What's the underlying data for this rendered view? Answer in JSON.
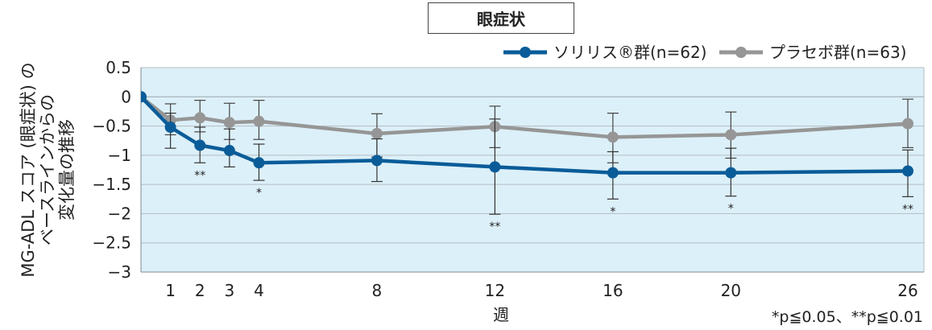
{
  "chart_data": {
    "type": "line",
    "title": "眼症状",
    "xlabel": "週",
    "ylabel_line1": "MG-ADL スコア (眼症状) の",
    "ylabel_line2": "ベースラインからの",
    "ylabel_line3": "変化量の推移",
    "ylim": [
      -3,
      0.5
    ],
    "y_ticks": [
      "0.5",
      "0",
      "−0.5",
      "−1",
      "−1.5",
      "−2",
      "−2.5",
      "−3"
    ],
    "y_tick_values": [
      0.5,
      0,
      -0.5,
      -1,
      -1.5,
      -2,
      -2.5,
      -3
    ],
    "x_ticks": [
      "1",
      "2",
      "3",
      "4",
      "8",
      "12",
      "16",
      "20",
      "26"
    ],
    "x_tick_values": [
      1,
      2,
      3,
      4,
      8,
      12,
      16,
      20,
      26
    ],
    "grid": true,
    "legend_position": "top-right",
    "footnote": "*p≦0.05、**p≦0.01",
    "series": [
      {
        "name": "ソリリス®群(n=62)",
        "color": "#0a5c99",
        "x": [
          0,
          1,
          2,
          3,
          4,
          8,
          12,
          16,
          20,
          26
        ],
        "y": [
          0,
          -0.52,
          -0.83,
          -0.92,
          -1.13,
          -1.09,
          -1.2,
          -1.3,
          -1.3,
          -1.27
        ],
        "err_low": [
          null,
          -0.88,
          -1.13,
          -1.2,
          -1.43,
          -1.45,
          -2.01,
          -1.75,
          -1.7,
          -1.71
        ],
        "err_high": [
          null,
          -0.28,
          -0.52,
          -0.55,
          -0.81,
          -0.72,
          -0.38,
          -0.94,
          -0.88,
          -0.91
        ],
        "significance": [
          "",
          "",
          "**",
          "",
          "*",
          "",
          "**",
          "*",
          "*",
          "**"
        ]
      },
      {
        "name": "プラセボ群(n=63)",
        "color": "#969696",
        "x": [
          0,
          1,
          2,
          3,
          4,
          8,
          12,
          16,
          20,
          26
        ],
        "y": [
          0,
          -0.4,
          -0.36,
          -0.44,
          -0.42,
          -0.63,
          -0.51,
          -0.69,
          -0.65,
          -0.46
        ],
        "err_low": [
          null,
          -0.65,
          -0.6,
          -0.73,
          -0.73,
          -1.03,
          -0.87,
          -1.13,
          -1.05,
          -0.87
        ],
        "err_high": [
          null,
          -0.12,
          -0.06,
          -0.11,
          -0.06,
          -0.29,
          -0.16,
          -0.28,
          -0.26,
          -0.04
        ]
      }
    ]
  }
}
